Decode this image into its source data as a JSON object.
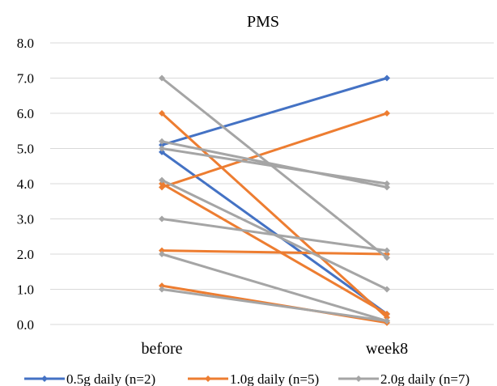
{
  "chart_data": {
    "type": "line",
    "title": "PMS",
    "categories": [
      "before",
      "week8"
    ],
    "ylim": [
      0,
      8
    ],
    "yticks": [
      "0.0",
      "1.0",
      "2.0",
      "3.0",
      "4.0",
      "5.0",
      "6.0",
      "7.0",
      "8.0"
    ],
    "grid": true,
    "legend_position": "bottom",
    "groups": [
      {
        "name": "0.5g daily (n=2)",
        "color": "#4472C4",
        "lines": [
          [
            5.1,
            7.0
          ],
          [
            4.9,
            0.3
          ]
        ]
      },
      {
        "name": "1.0g daily (n=5)",
        "color": "#ED7D31",
        "lines": [
          [
            6.0,
            0.2
          ],
          [
            3.9,
            6.0
          ],
          [
            4.0,
            0.3
          ],
          [
            2.1,
            2.0
          ],
          [
            1.1,
            0.05
          ]
        ]
      },
      {
        "name": "2.0g daily (n=7)",
        "color": "#A5A5A5",
        "lines": [
          [
            7.0,
            1.9
          ],
          [
            5.2,
            3.9
          ],
          [
            5.0,
            4.0
          ],
          [
            4.1,
            1.0
          ],
          [
            3.0,
            2.1
          ],
          [
            2.0,
            0.1
          ],
          [
            1.0,
            0.1
          ]
        ]
      }
    ]
  }
}
